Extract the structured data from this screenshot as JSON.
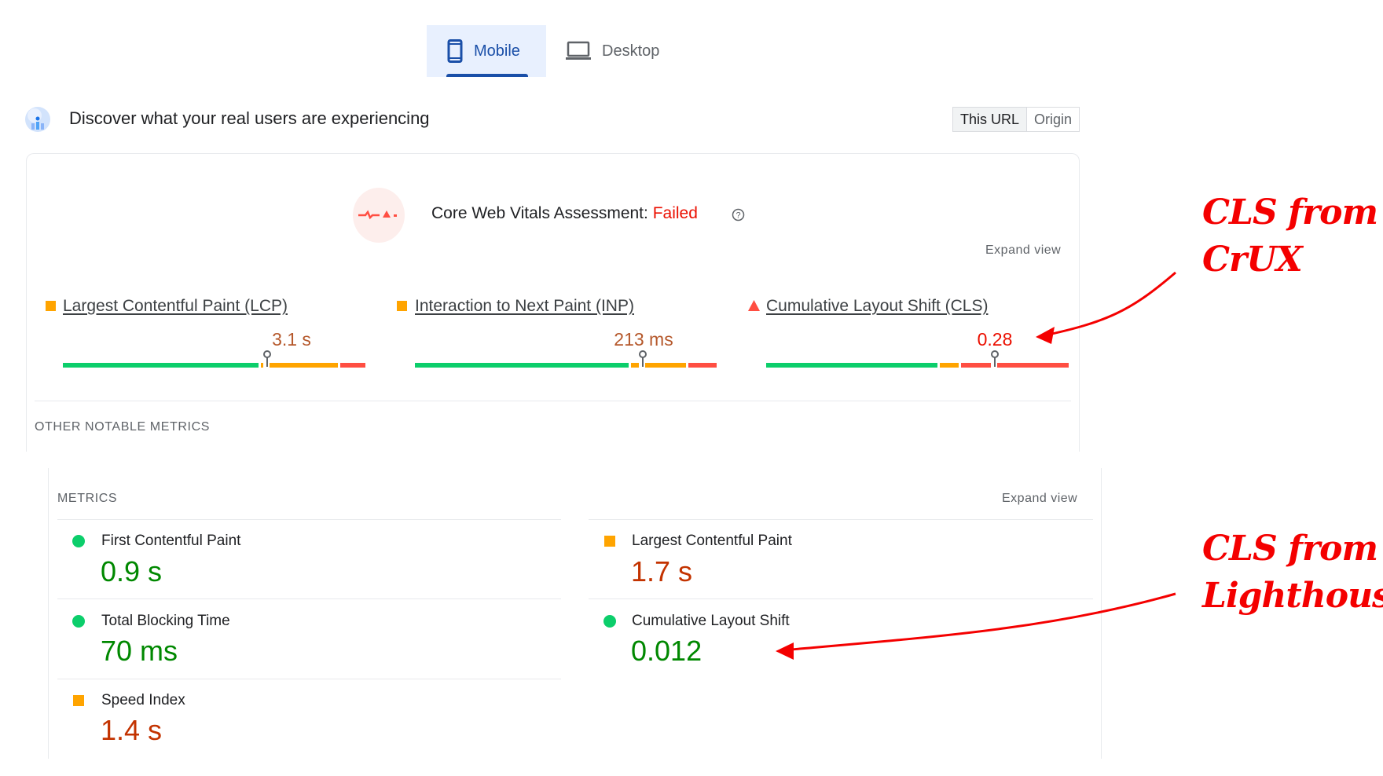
{
  "tabs": [
    {
      "label": "Mobile",
      "icon": "smartphone-icon",
      "active": true
    },
    {
      "label": "Desktop",
      "icon": "laptop-icon",
      "active": false
    }
  ],
  "header": {
    "title": "Discover what your real users are experiencing",
    "icon": "crux-users-icon",
    "toggle": [
      "This URL",
      "Origin"
    ],
    "toggle_selected": "This URL"
  },
  "crux": {
    "assessment_label": "Core Web Vitals Assessment:",
    "assessment_status": "Failed",
    "expand_label": "Expand view",
    "metrics": [
      {
        "name": "Largest Contentful Paint (LCP)",
        "value": "3.1 s",
        "rating": "needs-improvement",
        "distribution": {
          "good": 0.65,
          "needs_improvement": 0.26,
          "poor": 0.09
        },
        "marker": 0.67
      },
      {
        "name": "Interaction to Next Paint (INP)",
        "value": "213 ms",
        "rating": "needs-improvement",
        "distribution": {
          "good": 0.71,
          "needs_improvement": 0.19,
          "poor": 0.1
        },
        "marker": 0.75
      },
      {
        "name": "Cumulative Layout Shift (CLS)",
        "value": "0.28",
        "rating": "poor",
        "distribution": {
          "good": 0.57,
          "needs_improvement": 0.07,
          "poor": 0.36
        },
        "marker": 0.75
      }
    ],
    "other_label": "OTHER NOTABLE METRICS"
  },
  "lighthouse": {
    "heading": "METRICS",
    "expand_label": "Expand view",
    "metrics": [
      {
        "label": "First Contentful Paint",
        "value": "0.9 s",
        "rating": "good"
      },
      {
        "label": "Largest Contentful Paint",
        "value": "1.7 s",
        "rating": "average"
      },
      {
        "label": "Total Blocking Time",
        "value": "70 ms",
        "rating": "good"
      },
      {
        "label": "Cumulative Layout Shift",
        "value": "0.012",
        "rating": "good"
      },
      {
        "label": "Speed Index",
        "value": "1.4 s",
        "rating": "average"
      }
    ]
  },
  "annotations": [
    {
      "line1": "CLS from",
      "line2": "CrUX"
    },
    {
      "line1": "CLS from",
      "line2": "Lighthouse"
    }
  ],
  "colors": {
    "good": "#0cce6b",
    "average": "#ffa400",
    "poor": "#ff4e42",
    "good_text": "#008800",
    "average_text": "#c33300",
    "crux_ni_text": "#b5582b",
    "poor_text": "#eb0f00",
    "accent": "#1a4fa8"
  }
}
